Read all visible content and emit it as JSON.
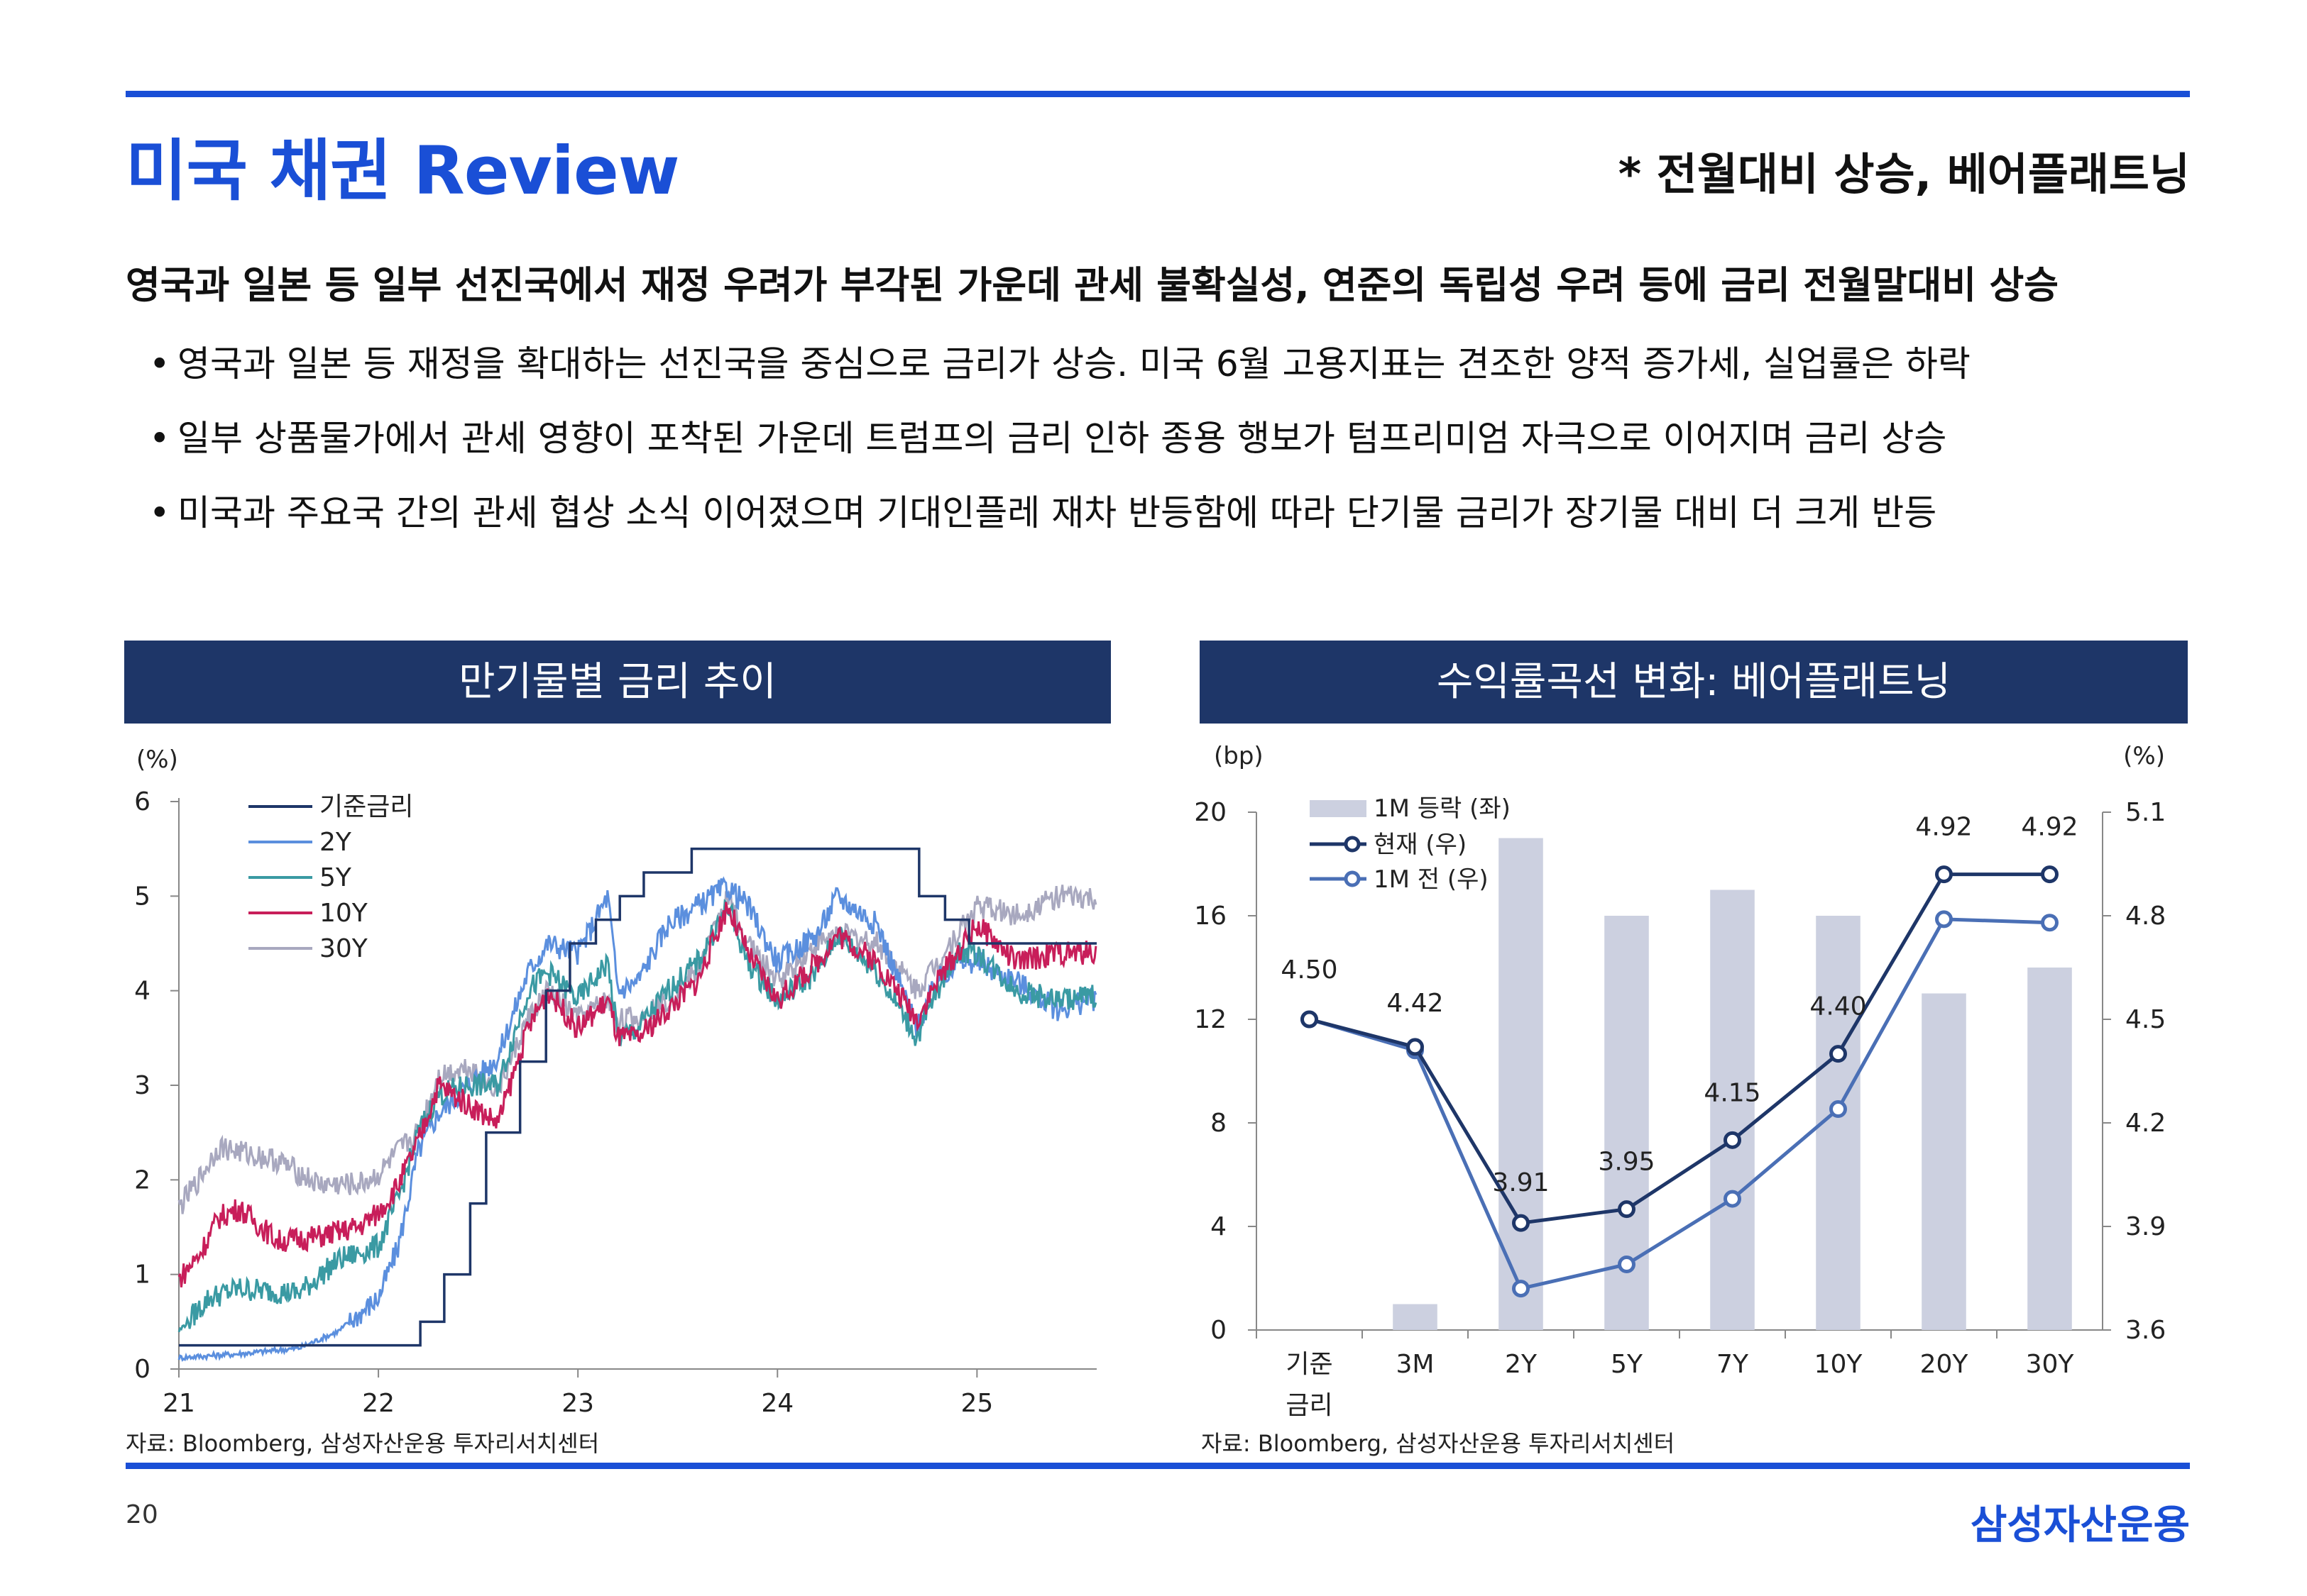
{
  "header": {
    "title": "미국 채권 Review",
    "note": "* 전월대비 상승, 베어플래트닝"
  },
  "headline": "영국과 일본 등 일부 선진국에서 재정 우려가 부각된 가운데 관세 불확실성, 연준의 독립성 우려 등에 금리 전월말대비 상승",
  "bullets": [
    "영국과 일본 등 재정을 확대하는 선진국을 중심으로 금리가 상승. 미국 6월 고용지표는 견조한 양적 증가세, 실업률은 하락",
    "일부 상품물가에서 관세 영향이 포착된 가운데 트럼프의 금리 인하 종용 행보가 텀프리미엄 자극으로 이어지며 금리 상승",
    "미국과 주요국 간의 관세 협상 소식 이어졌으며 기대인플레 재차 반등함에 따라 단기물 금리가 장기물 대비 더 크게 반등"
  ],
  "bullet_symbol": "•",
  "footer": {
    "page": "20",
    "brand": "삼성자산운용"
  },
  "colors": {
    "accent": "#1a4fd6",
    "panel": "#1e3668",
    "base_rate": "#1e3668",
    "y2": "#5b8fde",
    "y5": "#3a9aa3",
    "y10": "#c81e5a",
    "y30": "#a8a8bf",
    "bar": "#ccd0e0",
    "current": "#1e3668",
    "prev": "#4a6fb5"
  },
  "chart_data": [
    {
      "type": "line",
      "title": "만기물별 금리 추이",
      "unit_label": "(%)",
      "ylim": [
        0,
        6
      ],
      "y_ticks": [
        "0",
        "1",
        "2",
        "3",
        "4",
        "5",
        "6"
      ],
      "x_ticks": [
        "21",
        "22",
        "23",
        "24",
        "25"
      ],
      "x_tick_values": [
        2021,
        2022,
        2023,
        2024,
        2025
      ],
      "xlim": [
        2021,
        2025.6
      ],
      "source": "자료: Bloomberg, 삼성자산운용 투자리서치센터",
      "legend_position": "top-left",
      "series": [
        {
          "name": "기준금리",
          "step": true,
          "x": [
            2021.0,
            2022.21,
            2022.33,
            2022.46,
            2022.54,
            2022.71,
            2022.84,
            2022.96,
            2023.09,
            2023.21,
            2023.33,
            2023.57,
            2024.71,
            2024.84,
            2024.96,
            2025.6
          ],
          "y": [
            0.25,
            0.5,
            1.0,
            1.75,
            2.5,
            3.25,
            4.0,
            4.5,
            4.75,
            5.0,
            5.25,
            5.5,
            5.0,
            4.75,
            4.5,
            4.5
          ]
        },
        {
          "name": "2Y",
          "x": [
            2021.0,
            2021.3,
            2021.6,
            2021.8,
            2022.0,
            2022.1,
            2022.2,
            2022.3,
            2022.45,
            2022.6,
            2022.75,
            2022.85,
            2023.0,
            2023.15,
            2023.2,
            2023.3,
            2023.45,
            2023.6,
            2023.75,
            2023.85,
            2024.0,
            2024.2,
            2024.3,
            2024.5,
            2024.7,
            2024.8,
            2024.9,
            2025.0,
            2025.2,
            2025.4,
            2025.6
          ],
          "y": [
            0.12,
            0.16,
            0.22,
            0.4,
            0.75,
            1.3,
            2.3,
            2.7,
            3.0,
            3.3,
            4.2,
            4.5,
            4.4,
            5.0,
            4.0,
            4.1,
            4.7,
            4.9,
            5.1,
            4.9,
            4.3,
            4.6,
            5.0,
            4.7,
            3.6,
            4.1,
            4.3,
            4.3,
            4.1,
            3.8,
            3.92
          ]
        },
        {
          "name": "5Y",
          "x": [
            2021.0,
            2021.15,
            2021.3,
            2021.6,
            2021.8,
            2022.0,
            2022.1,
            2022.2,
            2022.3,
            2022.45,
            2022.6,
            2022.75,
            2022.85,
            2023.0,
            2023.15,
            2023.2,
            2023.3,
            2023.45,
            2023.6,
            2023.75,
            2023.85,
            2024.0,
            2024.2,
            2024.3,
            2024.5,
            2024.7,
            2024.8,
            2024.9,
            2025.0,
            2025.2,
            2025.4,
            2025.6
          ],
          "y": [
            0.4,
            0.75,
            0.85,
            0.8,
            1.15,
            1.3,
            1.8,
            2.5,
            2.9,
            3.0,
            3.0,
            4.0,
            4.2,
            3.9,
            4.3,
            3.5,
            3.6,
            4.0,
            4.3,
            4.9,
            4.3,
            3.9,
            4.2,
            4.6,
            4.2,
            3.5,
            4.0,
            4.4,
            4.4,
            4.0,
            3.9,
            3.95
          ]
        },
        {
          "name": "10Y",
          "x": [
            2021.0,
            2021.1,
            2021.2,
            2021.3,
            2021.5,
            2021.7,
            2021.9,
            2022.0,
            2022.1,
            2022.2,
            2022.3,
            2022.45,
            2022.6,
            2022.75,
            2022.85,
            2023.0,
            2023.15,
            2023.2,
            2023.3,
            2023.45,
            2023.6,
            2023.75,
            2023.85,
            2024.0,
            2024.2,
            2024.3,
            2024.5,
            2024.7,
            2024.8,
            2024.9,
            2025.0,
            2025.2,
            2025.4,
            2025.6
          ],
          "y": [
            0.95,
            1.2,
            1.6,
            1.7,
            1.35,
            1.4,
            1.5,
            1.65,
            1.95,
            2.4,
            3.0,
            2.8,
            2.6,
            3.6,
            4.0,
            3.6,
            3.9,
            3.5,
            3.5,
            3.8,
            4.1,
            4.9,
            4.4,
            3.9,
            4.3,
            4.6,
            4.3,
            3.7,
            4.1,
            4.4,
            4.7,
            4.3,
            4.4,
            4.4
          ]
        },
        {
          "name": "30Y",
          "x": [
            2021.0,
            2021.1,
            2021.2,
            2021.3,
            2021.5,
            2021.7,
            2021.9,
            2022.0,
            2022.1,
            2022.2,
            2022.3,
            2022.45,
            2022.6,
            2022.75,
            2022.85,
            2023.0,
            2023.15,
            2023.2,
            2023.3,
            2023.45,
            2023.6,
            2023.75,
            2023.85,
            2024.0,
            2024.2,
            2024.3,
            2024.5,
            2024.7,
            2024.8,
            2024.9,
            2025.0,
            2025.2,
            2025.4,
            2025.6
          ],
          "y": [
            1.7,
            2.0,
            2.35,
            2.3,
            2.2,
            1.95,
            1.95,
            2.05,
            2.3,
            2.5,
            3.1,
            3.2,
            2.95,
            3.7,
            4.0,
            3.7,
            3.9,
            3.7,
            3.7,
            3.9,
            4.2,
            5.0,
            4.5,
            4.1,
            4.5,
            4.6,
            4.5,
            4.0,
            4.3,
            4.6,
            4.9,
            4.8,
            5.0,
            4.95
          ]
        }
      ]
    },
    {
      "type": "bar",
      "title": "수익률곡선 변화: 베어플래트닝",
      "left_unit_label": "(bp)",
      "right_unit_label": "(%)",
      "categories": [
        "기준\n금리",
        "3M",
        "2Y",
        "5Y",
        "7Y",
        "10Y",
        "20Y",
        "30Y"
      ],
      "ylim_left": [
        0,
        20
      ],
      "y_ticks_left": [
        "0",
        "4",
        "8",
        "12",
        "16",
        "20"
      ],
      "ylim_right": [
        3.6,
        5.1
      ],
      "y_ticks_right": [
        "3.6",
        "3.9",
        "4.2",
        "4.5",
        "4.8",
        "5.1"
      ],
      "source": "자료: Bloomberg, 삼성자산운용 투자리서치센터",
      "legend_position": "top-left",
      "bars": {
        "name": "1M 등락 (좌)",
        "values": [
          0,
          1,
          19,
          16,
          17,
          16,
          13,
          14
        ]
      },
      "lines": [
        {
          "name": "현재 (우)",
          "values": [
            4.5,
            4.42,
            3.91,
            3.95,
            4.15,
            4.4,
            4.92,
            4.92
          ],
          "labels": [
            "4.50",
            "4.42",
            "3.91",
            "3.95",
            "4.15",
            "4.40",
            "4.92",
            "4.92"
          ]
        },
        {
          "name": "1M 전 (우)",
          "values": [
            4.5,
            4.41,
            3.72,
            3.79,
            3.98,
            4.24,
            4.79,
            4.78
          ]
        }
      ]
    }
  ]
}
